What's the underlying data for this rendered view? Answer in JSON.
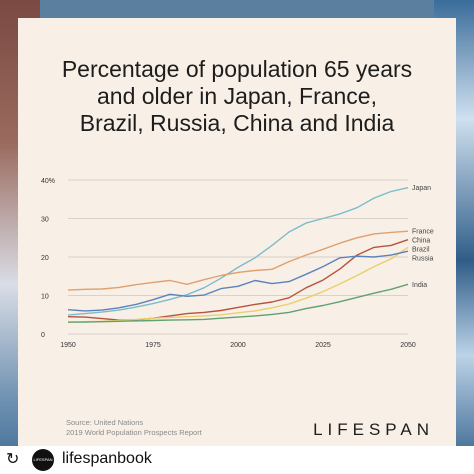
{
  "chart_data": {
    "type": "line",
    "title": "Percentage of population 65 years\nand older in Japan, France,\nBrazil, Russia, China and India",
    "xlim": [
      1950,
      2050
    ],
    "ylim": [
      0,
      40
    ],
    "x_ticks": [
      "1950",
      "1975",
      "2000",
      "2025",
      "2050"
    ],
    "y_ticks": [
      "0",
      "10",
      "20",
      "30",
      "40%"
    ],
    "grid": true,
    "series": [
      {
        "name": "Japan",
        "color": "#7bbccc",
        "x": [
          1950,
          1955,
          1960,
          1965,
          1970,
          1975,
          1980,
          1985,
          1990,
          1995,
          2000,
          2005,
          2010,
          2015,
          2020,
          2025,
          2030,
          2035,
          2040,
          2045,
          2050
        ],
        "values": [
          4.9,
          5.3,
          5.7,
          6.2,
          7.0,
          7.9,
          9.0,
          10.2,
          12.0,
          14.5,
          17.3,
          19.8,
          23.0,
          26.5,
          28.8,
          30.0,
          31.2,
          32.8,
          35.3,
          37.0,
          38.0
        ]
      },
      {
        "name": "France",
        "color": "#e0a06e",
        "x": [
          1950,
          1955,
          1960,
          1965,
          1970,
          1975,
          1980,
          1985,
          1990,
          1995,
          2000,
          2005,
          2010,
          2015,
          2020,
          2025,
          2030,
          2035,
          2040,
          2045,
          2050
        ],
        "values": [
          11.4,
          11.6,
          11.7,
          12.1,
          12.8,
          13.4,
          13.9,
          12.9,
          14.1,
          15.2,
          16.0,
          16.5,
          16.8,
          18.8,
          20.5,
          22.0,
          23.6,
          25.0,
          26.0,
          26.4,
          26.7
        ]
      },
      {
        "name": "China",
        "color": "#b5533c",
        "x": [
          1950,
          1955,
          1960,
          1965,
          1970,
          1975,
          1980,
          1985,
          1990,
          1995,
          2000,
          2005,
          2010,
          2015,
          2020,
          2025,
          2030,
          2035,
          2040,
          2045,
          2050
        ],
        "values": [
          4.5,
          4.4,
          4.0,
          3.6,
          3.7,
          4.1,
          4.7,
          5.3,
          5.6,
          6.1,
          6.9,
          7.7,
          8.3,
          9.4,
          12.0,
          14.0,
          16.9,
          20.5,
          22.5,
          23.0,
          24.5
        ]
      },
      {
        "name": "Brazil",
        "color": "#e8cf6a",
        "x": [
          1950,
          1955,
          1960,
          1965,
          1970,
          1975,
          1980,
          1985,
          1990,
          1995,
          2000,
          2005,
          2010,
          2015,
          2020,
          2025,
          2030,
          2035,
          2040,
          2045,
          2050
        ],
        "values": [
          3.0,
          3.2,
          3.3,
          3.5,
          3.8,
          4.1,
          4.3,
          4.5,
          4.7,
          5.0,
          5.5,
          6.0,
          6.8,
          7.8,
          9.3,
          11.0,
          13.0,
          15.2,
          17.5,
          19.5,
          22.5
        ]
      },
      {
        "name": "Russia",
        "color": "#5c82be",
        "x": [
          1950,
          1955,
          1960,
          1965,
          1970,
          1975,
          1980,
          1985,
          1990,
          1995,
          2000,
          2005,
          2010,
          2015,
          2020,
          2025,
          2030,
          2035,
          2040,
          2045,
          2050
        ],
        "values": [
          6.3,
          6.0,
          6.2,
          6.8,
          7.7,
          8.9,
          10.3,
          9.8,
          10.1,
          11.8,
          12.4,
          13.9,
          13.1,
          13.6,
          15.5,
          17.5,
          19.8,
          20.2,
          20.0,
          20.5,
          21.5
        ]
      },
      {
        "name": "India",
        "color": "#5fa272",
        "x": [
          1950,
          1955,
          1960,
          1965,
          1970,
          1975,
          1980,
          1985,
          1990,
          1995,
          2000,
          2005,
          2010,
          2015,
          2020,
          2025,
          2030,
          2035,
          2040,
          2045,
          2050
        ],
        "values": [
          3.1,
          3.1,
          3.2,
          3.3,
          3.4,
          3.5,
          3.6,
          3.7,
          3.8,
          4.1,
          4.4,
          4.7,
          5.1,
          5.6,
          6.6,
          7.4,
          8.4,
          9.5,
          10.6,
          11.6,
          12.9
        ]
      }
    ]
  },
  "source": {
    "line1": "Source: United Nations",
    "line2": "2019 World Population Prospects Report"
  },
  "brand": "LIFESPAN",
  "footer": {
    "repost_icon": "repost-icon",
    "avatar_text": "LIFESPAN",
    "account": "lifespanbook"
  }
}
